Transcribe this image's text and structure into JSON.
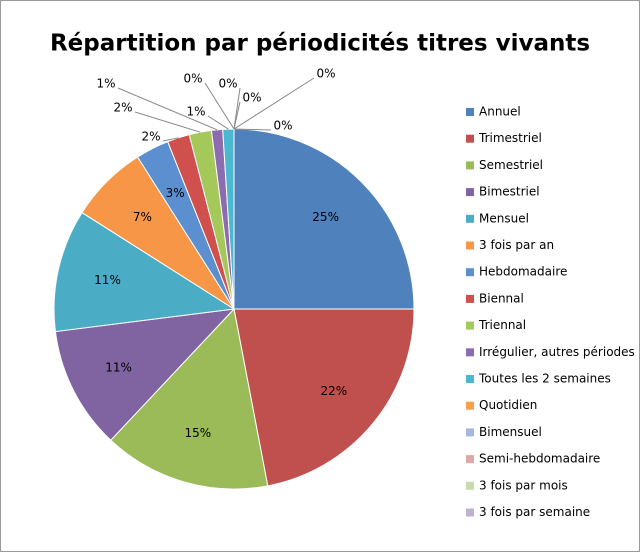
{
  "chart_data": {
    "type": "pie",
    "title": "Répartition par périodicités titres vivants",
    "categories": [
      "Annuel",
      "Trimestriel",
      "Semestriel",
      "Bimestriel",
      "Mensuel",
      "3 fois par an",
      "Hebdomadaire",
      "Biennal",
      "Triennal",
      "Irrégulier, autres périodes",
      "Toutes les 2 semaines",
      "Quotidien",
      "Bimensuel",
      "Semi-hebdomadaire",
      "3 fois par mois",
      "3 fois par semaine"
    ],
    "values": [
      25,
      22,
      15,
      11,
      11,
      7,
      3,
      2,
      2,
      1,
      1,
      0,
      0,
      0,
      0,
      0
    ],
    "value_labels": [
      "25%",
      "22%",
      "15%",
      "11%",
      "11%",
      "7%",
      "3%",
      "2%",
      "2%",
      "1%",
      "1%",
      "0%",
      "0%",
      "0%",
      "0%",
      "0%"
    ],
    "colors": [
      "#4F81BD",
      "#C0504D",
      "#9BBB59",
      "#8064A2",
      "#4BACC6",
      "#F79646",
      "#5B8FD0",
      "#CF504D",
      "#A5C85B",
      "#8C6BB0",
      "#4BB8D0",
      "#F8A04C",
      "#A6B9DC",
      "#DDA8A7",
      "#C7DBAA",
      "#BFB1D2"
    ],
    "legend": "right"
  }
}
